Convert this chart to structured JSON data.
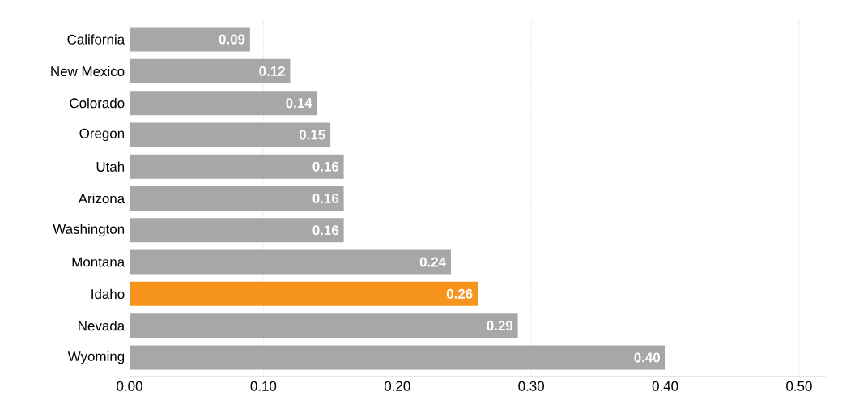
{
  "chart_data": {
    "type": "bar",
    "orientation": "horizontal",
    "categories": [
      "California",
      "New Mexico",
      "Colorado",
      "Oregon",
      "Utah",
      "Arizona",
      "Washington",
      "Montana",
      "Idaho",
      "Nevada",
      "Wyoming"
    ],
    "values": [
      0.09,
      0.12,
      0.14,
      0.15,
      0.16,
      0.16,
      0.16,
      0.24,
      0.26,
      0.29,
      0.4
    ],
    "value_labels": [
      "0.09",
      "0.12",
      "0.14",
      "0.15",
      "0.16",
      "0.16",
      "0.16",
      "0.24",
      "0.26",
      "0.29",
      "0.40"
    ],
    "colors": [
      "#a7a7a9",
      "#a7a7a9",
      "#a7a7a9",
      "#a7a7a9",
      "#a7a7a9",
      "#a7a7a9",
      "#a7a7a9",
      "#a7a7a9",
      "#f7941d",
      "#a7a7a9",
      "#a7a7a9"
    ],
    "xlim": [
      0,
      0.52
    ],
    "xticks": [
      {
        "value": 0,
        "label": "0.00"
      },
      {
        "value": 0.1,
        "label": "0.10"
      },
      {
        "value": 0.2,
        "label": "0.20"
      },
      {
        "value": 0.3,
        "label": "0.30"
      },
      {
        "value": 0.4,
        "label": "0.40"
      },
      {
        "value": 0.5,
        "label": "0.50"
      }
    ],
    "grid": "x"
  }
}
